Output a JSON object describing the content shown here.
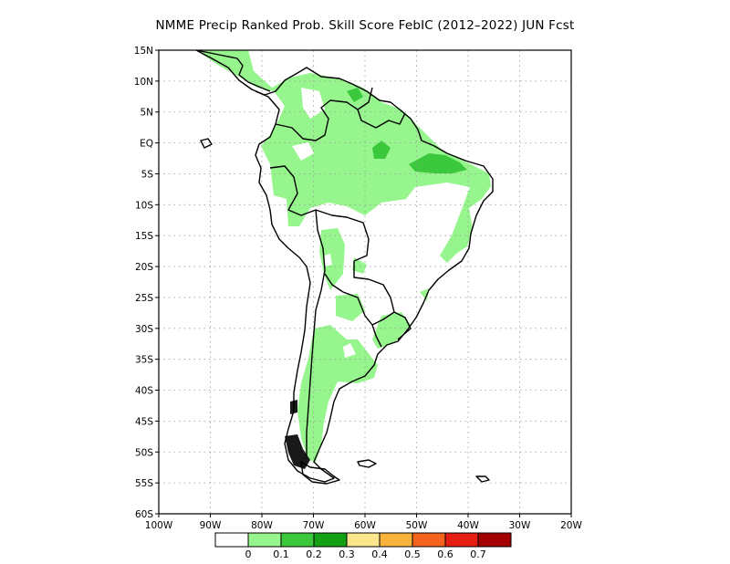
{
  "title": "NMME Precip Ranked Prob. Skill Score FebIC (2012–2022) JUN Fcst",
  "map": {
    "lon_range": [
      -100,
      -20
    ],
    "lat_range": [
      -60,
      15
    ],
    "lat_labels": [
      "15N",
      "10N",
      "5N",
      "EQ",
      "5S",
      "10S",
      "15S",
      "20S",
      "25S",
      "30S",
      "35S",
      "40S",
      "45S",
      "50S",
      "55S",
      "60S"
    ],
    "lon_labels": [
      "100W",
      "90W",
      "80W",
      "70W",
      "60W",
      "50W",
      "40W",
      "30W",
      "20W"
    ],
    "grid": true,
    "grid_style": "dotted"
  },
  "colorbar": {
    "tick_labels": [
      "0",
      "0.1",
      "0.2",
      "0.3",
      "0.4",
      "0.5",
      "0.6",
      "0.7"
    ],
    "colors": [
      "#ffffff",
      "#96f58c",
      "#3cc83c",
      "#14a014",
      "#fae68c",
      "#fab43c",
      "#f5641e",
      "#e61e14",
      "#a50000"
    ]
  },
  "colors": {
    "skill_0_1": "#96f58c",
    "skill_0_1_0_2": "#3cc83c",
    "land_outline": "#000000"
  }
}
